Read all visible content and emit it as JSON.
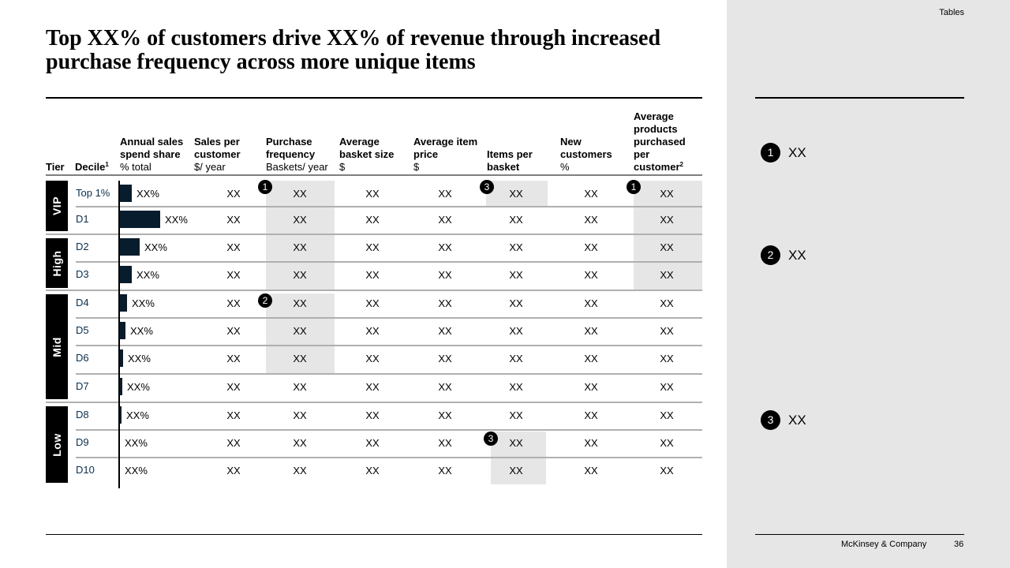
{
  "page": {
    "section_label": "Tables",
    "title": "Top XX% of customers drive XX% of revenue through increased purchase frequency across more unique items",
    "footer_brand": "McKinsey & Company",
    "page_number": "36"
  },
  "table": {
    "headers": {
      "tier": "Tier",
      "decile": "Decile",
      "decile_sup": "1",
      "annual_share": {
        "line1": "Annual sales",
        "line2": "spend share",
        "unit": "% total"
      },
      "sales_per_customer": {
        "line1": "Sales per",
        "line2": "customer",
        "unit": "$/ year"
      },
      "purchase_frequency": {
        "line1": "Purchase",
        "line2": "frequency",
        "unit": "Baskets/ year"
      },
      "avg_basket": {
        "line1": "Average",
        "line2": "basket size",
        "unit": "$"
      },
      "avg_item_price": {
        "line1": "Average item",
        "line2": "price",
        "unit": "$"
      },
      "items_per_basket": {
        "line1": "Items per",
        "line2": "basket"
      },
      "new_customers": {
        "line1": "New",
        "line2": "customers",
        "unit": "%"
      },
      "avg_products": {
        "line1": "Average",
        "line2": "products",
        "line3": "purchased",
        "line4": "per",
        "line5": "customer",
        "sup": "2"
      }
    },
    "tiers": [
      {
        "label": "VIP"
      },
      {
        "label": "High"
      },
      {
        "label": "Mid"
      },
      {
        "label": "Low"
      }
    ],
    "rows": [
      {
        "decile": "Top 1%",
        "share": "XX%",
        "share_value": 0.08,
        "sales": "XX",
        "freq": "XX",
        "basket": "XX",
        "price": "XX",
        "items": "XX",
        "new": "XX",
        "products": "XX"
      },
      {
        "decile": "D1",
        "share": "XX%",
        "share_value": 0.26,
        "sales": "XX",
        "freq": "XX",
        "basket": "XX",
        "price": "XX",
        "items": "XX",
        "new": "XX",
        "products": "XX"
      },
      {
        "decile": "D2",
        "share": "XX%",
        "share_value": 0.13,
        "sales": "XX",
        "freq": "XX",
        "basket": "XX",
        "price": "XX",
        "items": "XX",
        "new": "XX",
        "products": "XX"
      },
      {
        "decile": "D3",
        "share": "XX%",
        "share_value": 0.08,
        "sales": "XX",
        "freq": "XX",
        "basket": "XX",
        "price": "XX",
        "items": "XX",
        "new": "XX",
        "products": "XX"
      },
      {
        "decile": "D4",
        "share": "XX%",
        "share_value": 0.05,
        "sales": "XX",
        "freq": "XX",
        "basket": "XX",
        "price": "XX",
        "items": "XX",
        "new": "XX",
        "products": "XX"
      },
      {
        "decile": "D5",
        "share": "XX%",
        "share_value": 0.04,
        "sales": "XX",
        "freq": "XX",
        "basket": "XX",
        "price": "XX",
        "items": "XX",
        "new": "XX",
        "products": "XX"
      },
      {
        "decile": "D6",
        "share": "XX%",
        "share_value": 0.025,
        "sales": "XX",
        "freq": "XX",
        "basket": "XX",
        "price": "XX",
        "items": "XX",
        "new": "XX",
        "products": "XX"
      },
      {
        "decile": "D7",
        "share": "XX%",
        "share_value": 0.02,
        "sales": "XX",
        "freq": "XX",
        "basket": "XX",
        "price": "XX",
        "items": "XX",
        "new": "XX",
        "products": "XX"
      },
      {
        "decile": "D8",
        "share": "XX%",
        "share_value": 0.015,
        "sales": "XX",
        "freq": "XX",
        "basket": "XX",
        "price": "XX",
        "items": "XX",
        "new": "XX",
        "products": "XX"
      },
      {
        "decile": "D9",
        "share": "XX%",
        "share_value": 0.005,
        "sales": "XX",
        "freq": "XX",
        "basket": "XX",
        "price": "XX",
        "items": "XX",
        "new": "XX",
        "products": "XX"
      },
      {
        "decile": "D10",
        "share": "XX%",
        "share_value": 0.002,
        "sales": "XX",
        "freq": "XX",
        "basket": "XX",
        "price": "XX",
        "items": "XX",
        "new": "XX",
        "products": "XX"
      }
    ],
    "badges": {
      "b1": "1",
      "b2": "2",
      "b3": "3"
    }
  },
  "notes": [
    {
      "number": "1",
      "text": "XX"
    },
    {
      "number": "2",
      "text": "XX"
    },
    {
      "number": "3",
      "text": "XX"
    }
  ]
}
